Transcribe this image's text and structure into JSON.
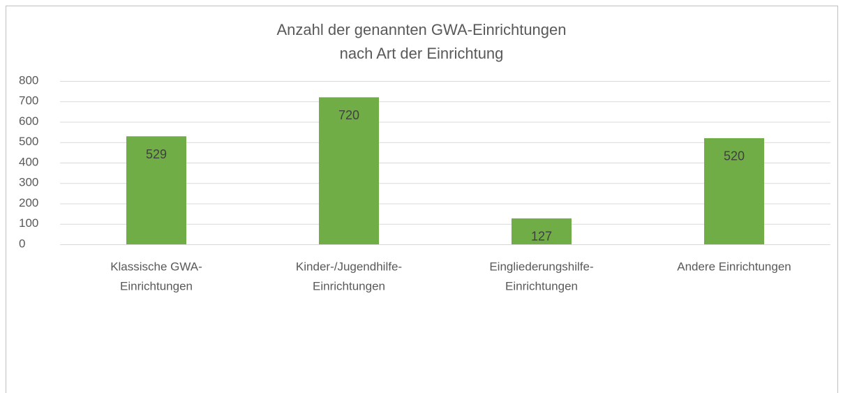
{
  "chart_data": {
    "type": "bar",
    "title": [
      "Anzahl der genannten GWA-Einrichtungen",
      "nach Art der Einrichtung"
    ],
    "categories": [
      [
        "Klassische GWA-",
        "Einrichtungen"
      ],
      [
        "Kinder-/Jugendhilfe-",
        "Einrichtungen"
      ],
      [
        "Eingliederungshilfe-",
        "Einrichtungen"
      ],
      [
        "Andere Einrichtungen"
      ]
    ],
    "values": [
      529,
      720,
      127,
      520
    ],
    "color": "#70ad47",
    "ylim": [
      0,
      800
    ],
    "yticks": [
      0,
      100,
      200,
      300,
      400,
      500,
      600,
      700,
      800
    ],
    "grid": true
  }
}
